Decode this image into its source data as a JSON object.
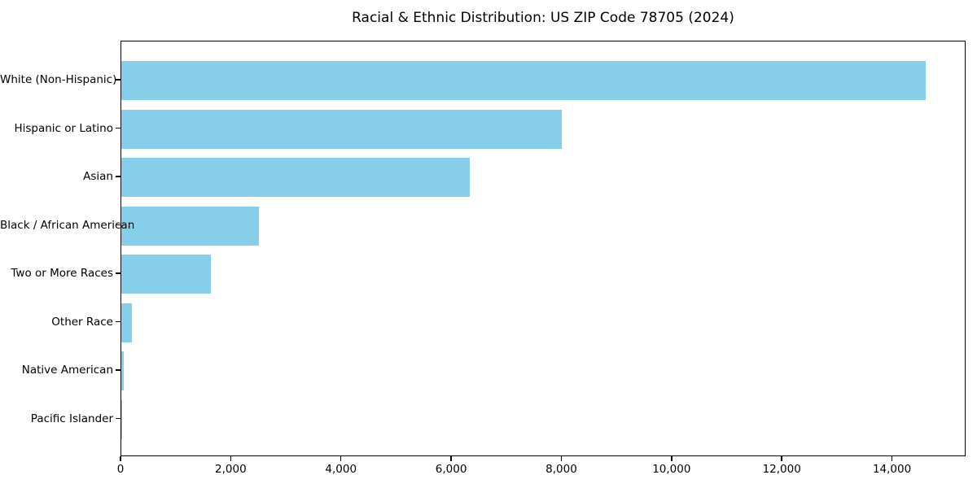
{
  "chart_data": {
    "type": "bar",
    "orientation": "horizontal",
    "title": "Racial & Ethnic Distribution: US ZIP Code 78705 (2024)",
    "categories": [
      "White (Non-Hispanic)",
      "Hispanic or Latino",
      "Asian",
      "Black / African American",
      "Two or More Races",
      "Other Race",
      "Native American",
      "Pacific Islander"
    ],
    "values": [
      14600,
      8000,
      6320,
      2500,
      1620,
      190,
      40,
      10
    ],
    "xlabel": "",
    "ylabel": "",
    "xlim": [
      0,
      15336
    ],
    "xticks": [
      0,
      2000,
      4000,
      6000,
      8000,
      10000,
      12000,
      14000
    ],
    "xtick_labels": [
      "0",
      "2,000",
      "4,000",
      "6,000",
      "8,000",
      "10,000",
      "12,000",
      "14,000"
    ],
    "bar_color": "#87CEEB",
    "axis_color": "#000000",
    "text_color": "#000000",
    "grid": false,
    "legend": false
  }
}
